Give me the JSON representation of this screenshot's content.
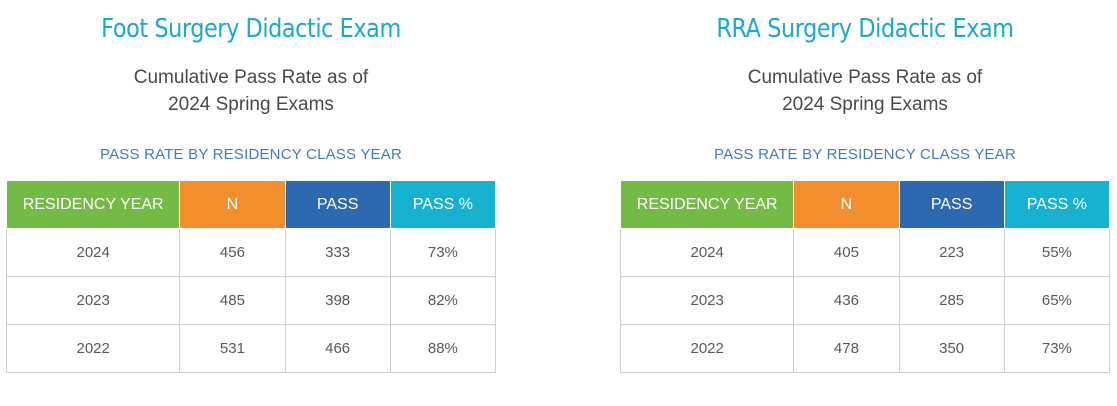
{
  "panels": [
    {
      "title": "Foot Surgery Didactic Exam",
      "subtitle_line1": "Cumulative Pass Rate as of",
      "subtitle_line2": "2024 Spring Exams",
      "caption": "PASS RATE BY RESIDENCY CLASS YEAR",
      "headers": {
        "year": "RESIDENCY YEAR",
        "n": "N",
        "pass": "PASS",
        "pct": "PASS %"
      },
      "rows": [
        {
          "year": "2024",
          "n": "456",
          "pass": "333",
          "pct": "73%"
        },
        {
          "year": "2023",
          "n": "485",
          "pass": "398",
          "pct": "82%"
        },
        {
          "year": "2022",
          "n": "531",
          "pass": "466",
          "pct": "88%"
        }
      ]
    },
    {
      "title": "RRA Surgery Didactic Exam",
      "subtitle_line1": "Cumulative Pass Rate as of",
      "subtitle_line2": "2024 Spring Exams",
      "caption": "PASS RATE BY RESIDENCY CLASS YEAR",
      "headers": {
        "year": "RESIDENCY YEAR",
        "n": "N",
        "pass": "PASS",
        "pct": "PASS %"
      },
      "rows": [
        {
          "year": "2024",
          "n": "405",
          "pass": "223",
          "pct": "55%"
        },
        {
          "year": "2023",
          "n": "436",
          "pass": "285",
          "pct": "65%"
        },
        {
          "year": "2022",
          "n": "478",
          "pass": "350",
          "pct": "73%"
        }
      ]
    }
  ],
  "colors": {
    "title": "#1ba8d1",
    "caption": "#3f7cc0",
    "header_year": "#74bb45",
    "header_n": "#f28e2b",
    "header_pass": "#2d69b1",
    "header_pct": "#18b2d1"
  }
}
